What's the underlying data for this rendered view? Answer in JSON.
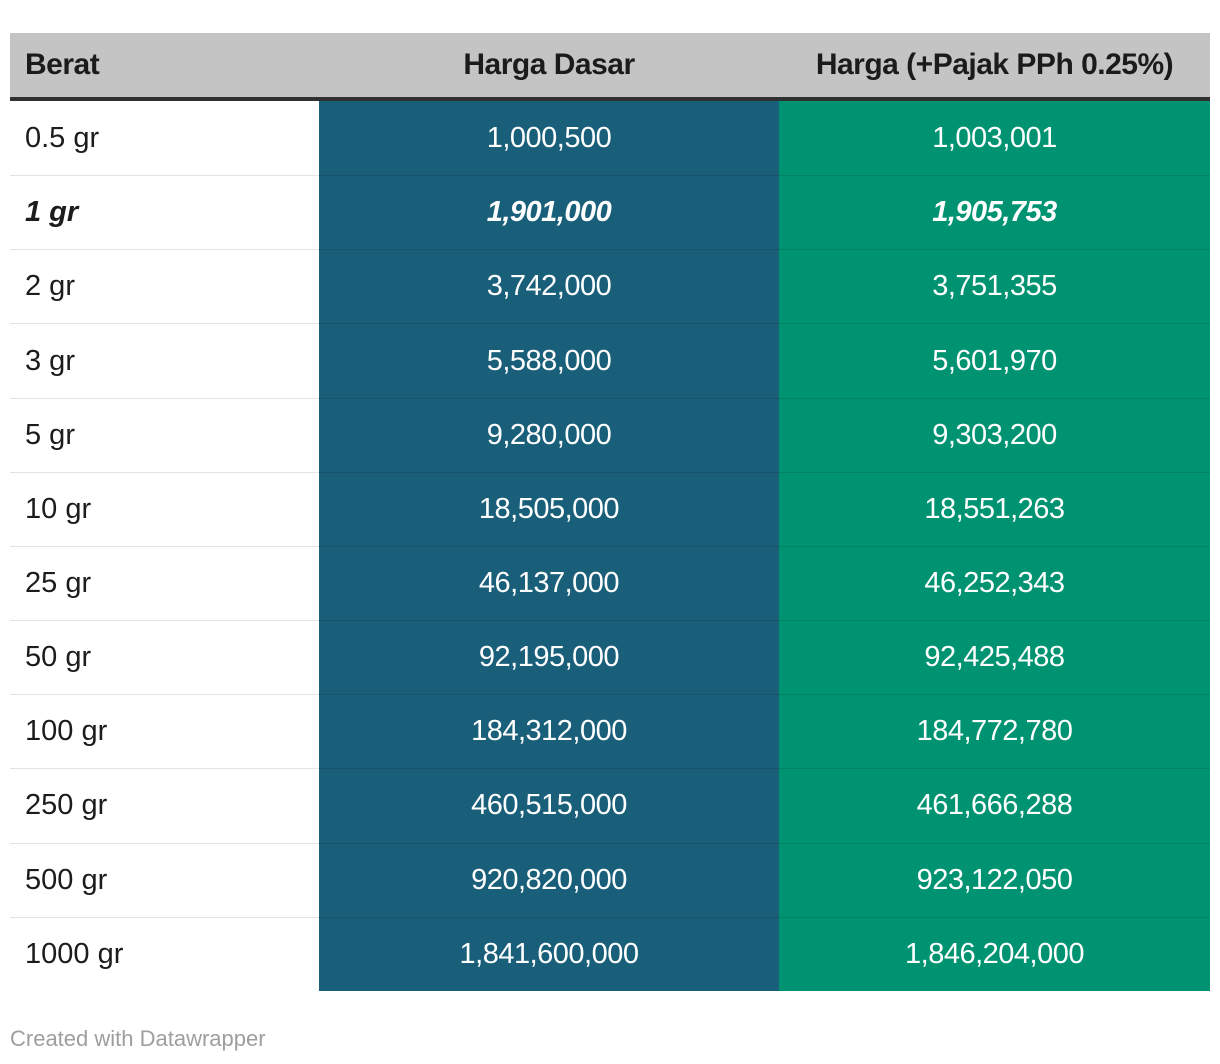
{
  "table": {
    "columns": [
      {
        "key": "berat",
        "label": "Berat"
      },
      {
        "key": "harga_dasar",
        "label": "Harga Dasar"
      },
      {
        "key": "harga_pajak",
        "label": "Harga (+Pajak PPh 0.25%)"
      }
    ]
  },
  "chart_data": {
    "type": "table",
    "columns": [
      "Berat",
      "Harga Dasar",
      "Harga (+Pajak PPh 0.25%)"
    ],
    "rows": [
      {
        "berat": "0.5 gr",
        "harga_dasar": "1,000,500",
        "harga_pajak": "1,003,001",
        "harga_dasar_value": 1000500,
        "harga_pajak_value": 1003001,
        "emphasis": false
      },
      {
        "berat": "1 gr",
        "harga_dasar": "1,901,000",
        "harga_pajak": "1,905,753",
        "harga_dasar_value": 1901000,
        "harga_pajak_value": 1905753,
        "emphasis": true
      },
      {
        "berat": "2 gr",
        "harga_dasar": "3,742,000",
        "harga_pajak": "3,751,355",
        "harga_dasar_value": 3742000,
        "harga_pajak_value": 3751355,
        "emphasis": false
      },
      {
        "berat": "3 gr",
        "harga_dasar": "5,588,000",
        "harga_pajak": "5,601,970",
        "harga_dasar_value": 5588000,
        "harga_pajak_value": 5601970,
        "emphasis": false
      },
      {
        "berat": "5 gr",
        "harga_dasar": "9,280,000",
        "harga_pajak": "9,303,200",
        "harga_dasar_value": 9280000,
        "harga_pajak_value": 9303200,
        "emphasis": false
      },
      {
        "berat": "10 gr",
        "harga_dasar": "18,505,000",
        "harga_pajak": "18,551,263",
        "harga_dasar_value": 18505000,
        "harga_pajak_value": 18551263,
        "emphasis": false
      },
      {
        "berat": "25 gr",
        "harga_dasar": "46,137,000",
        "harga_pajak": "46,252,343",
        "harga_dasar_value": 46137000,
        "harga_pajak_value": 46252343,
        "emphasis": false
      },
      {
        "berat": "50 gr",
        "harga_dasar": "92,195,000",
        "harga_pajak": "92,425,488",
        "harga_dasar_value": 92195000,
        "harga_pajak_value": 92425488,
        "emphasis": false
      },
      {
        "berat": "100 gr",
        "harga_dasar": "184,312,000",
        "harga_pajak": "184,772,780",
        "harga_dasar_value": 184312000,
        "harga_pajak_value": 184772780,
        "emphasis": false
      },
      {
        "berat": "250 gr",
        "harga_dasar": "460,515,000",
        "harga_pajak": "461,666,288",
        "harga_dasar_value": 460515000,
        "harga_pajak_value": 461666288,
        "emphasis": false
      },
      {
        "berat": "500 gr",
        "harga_dasar": "920,820,000",
        "harga_pajak": "923,122,050",
        "harga_dasar_value": 920820000,
        "harga_pajak_value": 923122050,
        "emphasis": false
      },
      {
        "berat": "1000 gr",
        "harga_dasar": "1,841,600,000",
        "harga_pajak": "1,846,204,000",
        "harga_dasar_value": 1841600000,
        "harga_pajak_value": 1846204000,
        "emphasis": false
      }
    ]
  },
  "footer": {
    "credit": "Created with Datawrapper"
  },
  "colors": {
    "header_bg": "#C4C4C4",
    "header_rule": "#303030",
    "col_dasar_bg": "#1A5F7A",
    "col_pajak_bg": "#009372",
    "value_text": "#FFFFFF"
  }
}
